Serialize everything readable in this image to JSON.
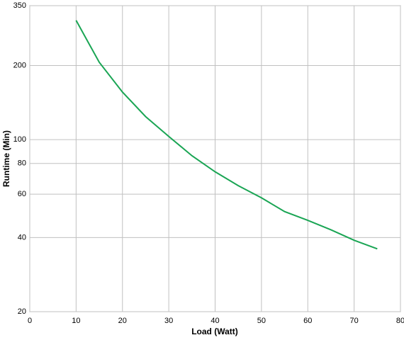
{
  "chart_data": {
    "type": "line",
    "x_label": "Load (Watt)",
    "y_label": "Runtime (Min)",
    "x": [
      10,
      15,
      20,
      25,
      30,
      35,
      40,
      45,
      50,
      55,
      60,
      65,
      70,
      75
    ],
    "series": [
      {
        "color": "#1aa554",
        "values": [
          305,
          206,
          156,
          124,
          103,
          86,
          74,
          65,
          58,
          51,
          47,
          43,
          39,
          36
        ]
      }
    ],
    "xlim": [
      0,
      80
    ],
    "xticks": [
      0,
      10,
      20,
      30,
      40,
      50,
      60,
      70,
      80
    ],
    "ylim": [
      20,
      350
    ],
    "yticks": [
      20,
      40,
      60,
      80,
      100,
      200,
      350
    ],
    "y_scale": "log",
    "grid": true
  }
}
